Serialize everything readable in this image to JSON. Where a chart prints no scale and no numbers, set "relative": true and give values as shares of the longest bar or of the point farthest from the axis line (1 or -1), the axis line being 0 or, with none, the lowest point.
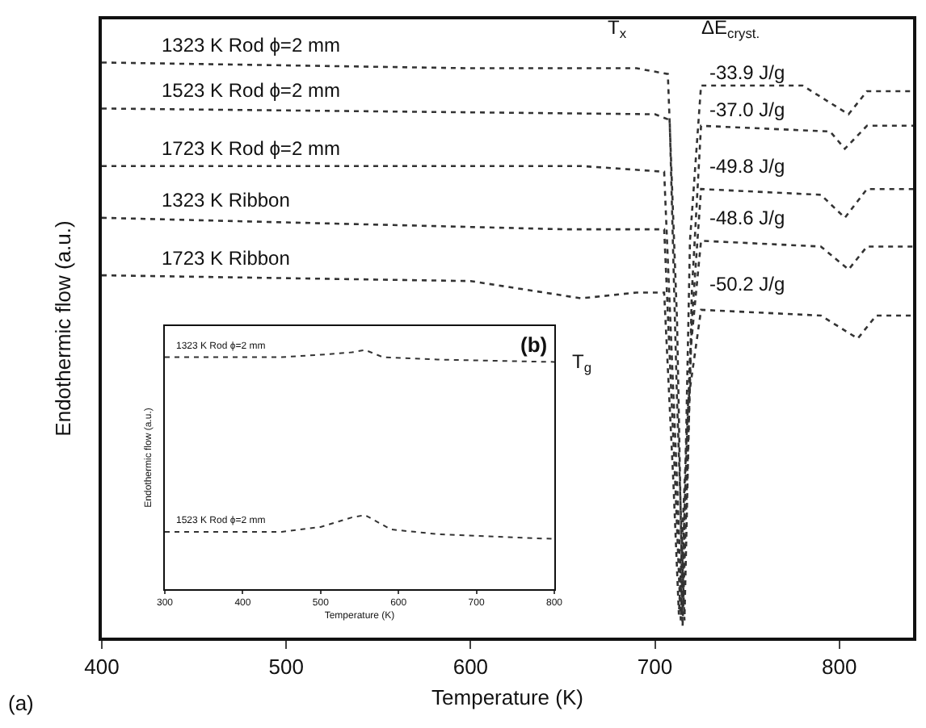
{
  "chart_data": [
    {
      "type": "line",
      "xlabel": "Temperature (K)",
      "ylabel": "Endothermic flow (a.u.)",
      "relative": true,
      "xlim": [
        400,
        840
      ],
      "xticks": [
        400,
        500,
        600,
        700,
        800
      ],
      "grid": false,
      "legend": false,
      "marker": "none",
      "line_style": "dotted",
      "series": [
        {
          "name": "1323 K Rod ϕ=2 mm",
          "color": "#333333",
          "x": [
            400,
            600,
            690,
            707,
            712,
            715,
            719,
            725,
            780,
            805,
            815,
            840
          ],
          "values": [
            1.0,
            0.99,
            0.99,
            0.98,
            0.55,
            0.04,
            0.69,
            0.96,
            0.96,
            0.91,
            0.95,
            0.95
          ]
        },
        {
          "name": "1523 K Rod ϕ=2 mm",
          "color": "#333333",
          "x": [
            400,
            700,
            708,
            712,
            716,
            720,
            725,
            795,
            803,
            815,
            840
          ],
          "values": [
            0.92,
            0.91,
            0.9,
            0.41,
            0.03,
            0.6,
            0.89,
            0.88,
            0.85,
            0.89,
            0.89
          ]
        },
        {
          "name": "1723 K Rod ϕ=2 mm",
          "color": "#333333",
          "x": [
            400,
            660,
            705,
            712,
            715,
            720,
            725,
            790,
            803,
            815,
            840
          ],
          "values": [
            0.82,
            0.82,
            0.81,
            0.27,
            0.02,
            0.55,
            0.78,
            0.77,
            0.73,
            0.78,
            0.78
          ]
        },
        {
          "name": "1323 K Ribbon",
          "color": "#333333",
          "x": [
            400,
            650,
            705,
            711,
            714,
            719,
            725,
            790,
            805,
            815,
            840
          ],
          "values": [
            0.73,
            0.71,
            0.71,
            0.27,
            0.03,
            0.49,
            0.69,
            0.68,
            0.64,
            0.68,
            0.68
          ]
        },
        {
          "name": "1723 K Ribbon",
          "color": "#333333",
          "x": [
            400,
            600,
            660,
            690,
            705,
            710,
            713,
            718,
            725,
            790,
            810,
            820,
            840
          ],
          "values": [
            0.63,
            0.62,
            0.59,
            0.6,
            0.6,
            0.27,
            0.04,
            0.41,
            0.57,
            0.56,
            0.52,
            0.56,
            0.56
          ]
        }
      ],
      "annotations": [
        "T$_{x}$",
        "ΔE$_{cryst.}$",
        "-33.9 J/g",
        "-37.0 J/g",
        "-49.8 J/g",
        "-48.6 J/g",
        "-50.2 J/g",
        "T$_{g}$",
        "(a)"
      ]
    },
    {
      "type": "line",
      "xlabel": "Temperature (K)",
      "ylabel": "Endothermic flow (a.u.)",
      "relative": true,
      "xlim": [
        300,
        800
      ],
      "xticks": [
        300,
        400,
        500,
        600,
        700,
        800
      ],
      "grid": false,
      "legend": false,
      "marker": "none",
      "line_style": "dotted",
      "series": [
        {
          "name": "1323 K Rod ϕ=2 mm",
          "color": "#333333",
          "x": [
            300,
            450,
            500,
            540,
            557,
            580,
            650,
            800
          ],
          "values": [
            0.97,
            0.97,
            0.98,
            0.99,
            1.0,
            0.97,
            0.96,
            0.95
          ]
        },
        {
          "name": "1523 K Rod ϕ=2 mm",
          "color": "#333333",
          "x": [
            300,
            450,
            500,
            540,
            557,
            590,
            650,
            800
          ],
          "values": [
            0.24,
            0.24,
            0.26,
            0.3,
            0.31,
            0.25,
            0.23,
            0.21
          ]
        }
      ],
      "annotations": [
        "(b)"
      ]
    }
  ]
}
